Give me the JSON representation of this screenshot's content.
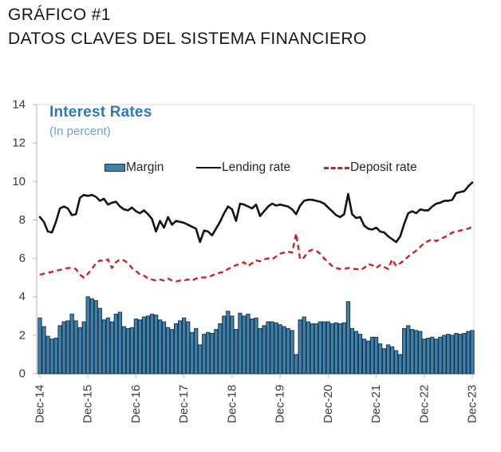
{
  "page": {
    "title_line1": "GRÁFICO #1",
    "title_line2": "DATOS CLAVES DEL SISTEMA FINANCIERO"
  },
  "chart": {
    "title": "Interest Rates",
    "subtitle": "(In percent)",
    "legend": {
      "margin_label": "Margin",
      "lending_label": "Lending rate",
      "deposit_label": "Deposit rate"
    },
    "colors": {
      "bar_fill": "#4180a8",
      "bar_border": "#17364e",
      "lending_line": "#141414",
      "deposit_line": "#cc2127",
      "title_blue": "#2e79b8",
      "subtitle_blue": "#6aa3d8",
      "axis_gray": "#b3b3b3",
      "border_gray": "#dcdcdc",
      "tick_text": "#3c3c3c"
    }
  },
  "chart_data": {
    "type": "bar",
    "subtype": "combo-bar-line",
    "title": "Interest Rates",
    "subtitle": "(In percent)",
    "xlabel": "",
    "ylabel": "",
    "ylim": [
      0,
      14
    ],
    "y_ticks": [
      0,
      2,
      4,
      6,
      8,
      10,
      12,
      14
    ],
    "x_tick_labels": [
      "Dec-14",
      "Dec-15",
      "Dec-16",
      "Dec-17",
      "Dec-18",
      "Dec-19",
      "Dec-20",
      "Dec-21",
      "Dec-22",
      "Dec-23"
    ],
    "x_frequency": "monthly",
    "x_start": "Dec-14",
    "x_end": "Dec-23",
    "legend_position": "top-center",
    "grid": false,
    "series": [
      {
        "name": "Margin",
        "type": "bar",
        "color": "#4180a8",
        "values": [
          2.9,
          2.45,
          1.95,
          1.8,
          1.85,
          2.5,
          2.7,
          2.75,
          3.1,
          2.75,
          2.4,
          2.7,
          4.0,
          3.9,
          3.8,
          3.4,
          2.8,
          2.9,
          2.7,
          3.1,
          3.2,
          2.45,
          2.35,
          2.4,
          2.85,
          2.8,
          2.95,
          3.0,
          3.1,
          3.05,
          2.8,
          2.7,
          2.4,
          2.3,
          2.6,
          2.75,
          2.9,
          2.7,
          2.15,
          2.35,
          1.5,
          2.05,
          2.15,
          2.1,
          2.3,
          2.6,
          3.0,
          3.25,
          3.0,
          2.3,
          3.15,
          3.0,
          3.1,
          2.85,
          2.9,
          2.35,
          2.5,
          2.7,
          2.7,
          2.65,
          2.55,
          2.45,
          2.35,
          2.25,
          1.0,
          2.8,
          2.95,
          2.7,
          2.6,
          2.6,
          2.7,
          2.7,
          2.7,
          2.6,
          2.65,
          2.6,
          2.65,
          3.75,
          2.35,
          2.2,
          2.05,
          1.8,
          1.7,
          1.9,
          1.9,
          1.55,
          1.3,
          1.5,
          1.4,
          1.2,
          1.0,
          2.35,
          2.5,
          2.3,
          2.25,
          2.2,
          1.8,
          1.85,
          1.9,
          1.8,
          1.9,
          2.0,
          2.05,
          2.0,
          2.1,
          2.05,
          2.1,
          2.2,
          2.25
        ]
      },
      {
        "name": "Lending rate",
        "type": "line",
        "color": "#141414",
        "values": [
          8.15,
          7.9,
          7.4,
          7.35,
          7.9,
          8.6,
          8.7,
          8.6,
          8.25,
          8.3,
          9.15,
          9.3,
          9.25,
          9.3,
          9.2,
          9.0,
          9.1,
          8.8,
          8.9,
          8.95,
          8.7,
          8.55,
          8.5,
          8.65,
          8.45,
          8.35,
          8.5,
          8.3,
          8.05,
          7.4,
          7.95,
          7.6,
          8.15,
          7.75,
          7.95,
          7.9,
          7.85,
          7.75,
          7.65,
          7.55,
          6.85,
          7.45,
          7.4,
          7.2,
          7.55,
          7.9,
          8.35,
          8.7,
          8.55,
          7.95,
          8.85,
          8.8,
          8.7,
          8.6,
          8.8,
          8.2,
          8.45,
          8.7,
          8.85,
          8.75,
          8.8,
          8.75,
          8.7,
          8.55,
          8.3,
          8.75,
          9.0,
          9.05,
          9.05,
          9.0,
          8.95,
          8.85,
          8.65,
          8.45,
          8.25,
          8.15,
          8.3,
          9.35,
          8.3,
          8.1,
          8.15,
          7.7,
          7.55,
          7.5,
          7.6,
          7.4,
          7.35,
          7.15,
          7.0,
          6.85,
          7.15,
          7.8,
          8.35,
          8.45,
          8.35,
          8.55,
          8.5,
          8.5,
          8.7,
          8.85,
          8.9,
          9.0,
          9.0,
          9.05,
          9.4,
          9.45,
          9.5,
          9.75,
          9.95
        ]
      },
      {
        "name": "Deposit rate",
        "type": "line",
        "dashed": true,
        "color": "#cc2127",
        "values": [
          5.15,
          5.2,
          5.25,
          5.3,
          5.35,
          5.4,
          5.45,
          5.5,
          5.5,
          5.45,
          5.15,
          5.0,
          5.2,
          5.45,
          5.75,
          5.9,
          5.85,
          5.95,
          5.5,
          5.8,
          5.95,
          5.9,
          5.75,
          5.5,
          5.35,
          5.15,
          5.1,
          4.95,
          4.9,
          4.85,
          4.9,
          4.85,
          4.95,
          4.85,
          4.8,
          4.85,
          4.85,
          4.9,
          4.85,
          4.95,
          5.0,
          5.0,
          5.05,
          5.1,
          5.2,
          5.25,
          5.3,
          5.45,
          5.55,
          5.65,
          5.7,
          5.8,
          5.6,
          5.75,
          5.9,
          5.85,
          5.95,
          6.0,
          5.95,
          6.1,
          6.25,
          6.3,
          6.35,
          6.3,
          7.3,
          5.95,
          6.05,
          6.35,
          6.45,
          6.4,
          6.25,
          6.0,
          5.8,
          5.6,
          5.5,
          5.45,
          5.45,
          5.5,
          5.45,
          5.45,
          5.4,
          5.5,
          5.7,
          5.65,
          5.5,
          5.65,
          5.55,
          5.45,
          5.95,
          5.6,
          5.75,
          5.9,
          6.1,
          6.25,
          6.4,
          6.6,
          6.8,
          6.9,
          7.0,
          6.9,
          7.0,
          7.1,
          7.2,
          7.35,
          7.4,
          7.45,
          7.5,
          7.55,
          7.65
        ]
      }
    ]
  }
}
